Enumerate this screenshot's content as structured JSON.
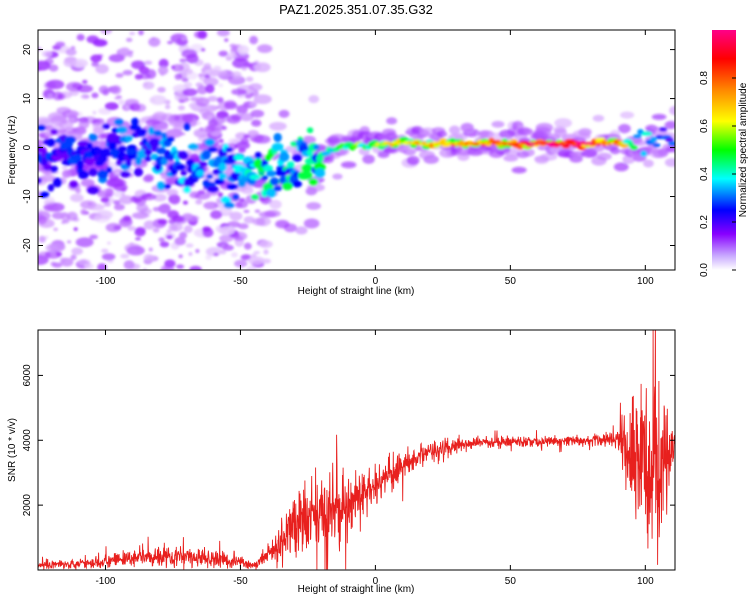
{
  "title": "PAZ1.2025.351.07.35.G32",
  "chart_data": [
    {
      "type": "heatmap",
      "title": "PAZ1.2025.351.07.35.G32",
      "xlabel": "Height of straight line (km)",
      "ylabel": "Frequency (Hz)",
      "xlim": [
        -125,
        111
      ],
      "ylim": [
        -25,
        24
      ],
      "xticks": [
        -100,
        -50,
        0,
        50,
        100
      ],
      "yticks": [
        -20,
        -10,
        0,
        10,
        20
      ],
      "colorbar": {
        "label": "Normalized spectral amplitude",
        "range": [
          0,
          1
        ],
        "ticks": [
          0.0,
          0.2,
          0.4,
          0.6,
          0.8
        ],
        "colors": [
          "#ffffff",
          "#8800ff",
          "#0000ff",
          "#00ffff",
          "#00ff00",
          "#ffff00",
          "#ff8800",
          "#ff0000",
          "#ff0088"
        ]
      },
      "ridge": [
        {
          "x": -110,
          "y": -2,
          "a": 0.25
        },
        {
          "x": -95,
          "y": 0,
          "a": 0.3
        },
        {
          "x": -85,
          "y": 2,
          "a": 0.3
        },
        {
          "x": -75,
          "y": -3,
          "a": 0.35
        },
        {
          "x": -60,
          "y": -4,
          "a": 0.3
        },
        {
          "x": -45,
          "y": -5,
          "a": 0.4
        },
        {
          "x": -40,
          "y": -6,
          "a": 0.45
        },
        {
          "x": -30,
          "y": -3,
          "a": 0.4
        },
        {
          "x": -20,
          "y": -1,
          "a": 0.45
        },
        {
          "x": -10,
          "y": 0,
          "a": 0.55
        },
        {
          "x": 0,
          "y": 0.5,
          "a": 0.6
        },
        {
          "x": 10,
          "y": 1,
          "a": 0.65
        },
        {
          "x": 20,
          "y": 0.8,
          "a": 0.7
        },
        {
          "x": 40,
          "y": 0.8,
          "a": 0.75
        },
        {
          "x": 60,
          "y": 0.8,
          "a": 0.9
        },
        {
          "x": 80,
          "y": 0.8,
          "a": 0.95
        },
        {
          "x": 90,
          "y": 0.8,
          "a": 0.7
        },
        {
          "x": 100,
          "y": 1,
          "a": 0.35
        },
        {
          "x": 108,
          "y": 2,
          "a": 0.3
        }
      ]
    },
    {
      "type": "line",
      "xlabel": "Height of straight line (km)",
      "ylabel": "SNR (10 * v/v)",
      "xlim": [
        -125,
        111
      ],
      "ylim": [
        0,
        7400
      ],
      "xticks": [
        -100,
        -50,
        0,
        50,
        100
      ],
      "yticks": [
        2000,
        4000,
        6000
      ],
      "line_color": "#e8201e",
      "envelope": [
        {
          "x": -125,
          "mean": 150,
          "noise": 100
        },
        {
          "x": -100,
          "mean": 250,
          "noise": 150
        },
        {
          "x": -80,
          "mean": 450,
          "noise": 300
        },
        {
          "x": -60,
          "mean": 350,
          "noise": 250
        },
        {
          "x": -45,
          "mean": 150,
          "noise": 100
        },
        {
          "x": -38,
          "mean": 600,
          "noise": 300
        },
        {
          "x": -30,
          "mean": 1300,
          "noise": 900
        },
        {
          "x": -20,
          "mean": 1700,
          "noise": 1300
        },
        {
          "x": -10,
          "mean": 2000,
          "noise": 800
        },
        {
          "x": 0,
          "mean": 2600,
          "noise": 500
        },
        {
          "x": 10,
          "mean": 3200,
          "noise": 400
        },
        {
          "x": 20,
          "mean": 3700,
          "noise": 250
        },
        {
          "x": 40,
          "mean": 3950,
          "noise": 150
        },
        {
          "x": 60,
          "mean": 3950,
          "noise": 150
        },
        {
          "x": 80,
          "mean": 4000,
          "noise": 150
        },
        {
          "x": 90,
          "mean": 4050,
          "noise": 200
        },
        {
          "x": 95,
          "mean": 3500,
          "noise": 1800
        },
        {
          "x": 100,
          "mean": 3200,
          "noise": 2500
        },
        {
          "x": 105,
          "mean": 3500,
          "noise": 2500
        },
        {
          "x": 111,
          "mean": 4000,
          "noise": 400
        }
      ]
    }
  ]
}
